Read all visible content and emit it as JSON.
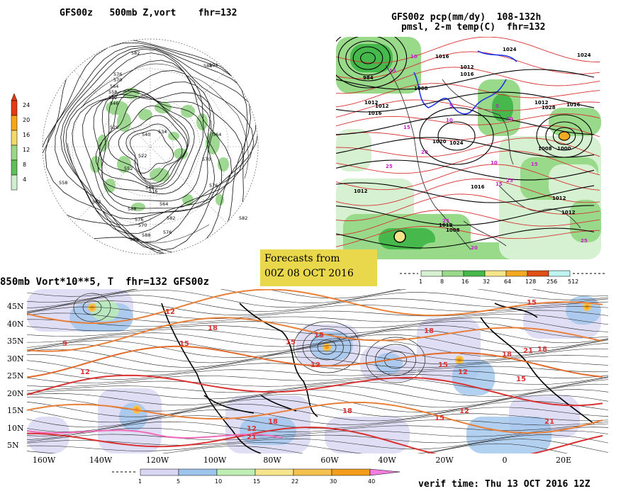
{
  "panel1": {
    "title": "GFS00z   500mb Z,vort    fhr=132",
    "colorbar_ticks": [
      "24",
      "20",
      "16",
      "12",
      "8",
      "4"
    ],
    "colorbar_colors": [
      "#e33b12",
      "#f7a51b",
      "#f3d86a",
      "#9ad78a",
      "#5fbf5a",
      "#cfeecf"
    ],
    "contour_labels": [
      "582",
      "588",
      "576",
      "570",
      "564",
      "558",
      "552",
      "546",
      "540",
      "534",
      "528",
      "522",
      "516",
      "570",
      "576",
      "564",
      "558",
      "594",
      "582",
      "588",
      "552",
      "546",
      "564",
      "582",
      "576",
      "570",
      "576",
      "582",
      "588",
      "582"
    ]
  },
  "panel2": {
    "title_line1": "GFS00z pcp(mm/dy)  108-132h",
    "title_line2": "pmsl, 2-m temp(C)  fhr=132",
    "colorbar_ticks": [
      "1",
      "8",
      "16",
      "32",
      "64",
      "128",
      "256",
      "512"
    ],
    "colorbar_colors": [
      "#d6f1d1",
      "#98da8a",
      "#47b94c",
      "#f6e48a",
      "#f3a922",
      "#e04f13",
      "#bff3f0"
    ],
    "pressure_labels": [
      "1016",
      "1024",
      "1012",
      "1008",
      "1016",
      "1012",
      "1012",
      "1020",
      "1024",
      "1028",
      "1012",
      "1016",
      "1012",
      "1008",
      "1016",
      "1024",
      "1000",
      "984",
      "1012",
      "1016",
      "1012",
      "1008",
      "1012"
    ],
    "temp_labels": [
      "15",
      "10",
      "5",
      "10",
      "5",
      "15",
      "20",
      "25",
      "10",
      "15",
      "20",
      "25",
      "25",
      "10",
      "25",
      "15"
    ]
  },
  "forecast_box": {
    "line1": "Forecasts from",
    "line2": "00Z 08 OCT 2016"
  },
  "panel3": {
    "title": "850mb Vort*10**5, T  fhr=132 GFS00z",
    "lat_labels": [
      "45N",
      "40N",
      "35N",
      "30N",
      "25N",
      "20N",
      "15N",
      "10N",
      "5N"
    ],
    "lon_labels": [
      "160W",
      "140W",
      "120W",
      "100W",
      "80W",
      "60W",
      "40W",
      "20W",
      "0",
      "20E"
    ],
    "colorbar_ticks": [
      "1",
      "5",
      "10",
      "15",
      "22",
      "30",
      "40"
    ],
    "colorbar_colors": [
      "#d8d6f2",
      "#9fc4ec",
      "#bdeeb3",
      "#f7e58e",
      "#f4c04e",
      "#f39d1c",
      "#f37ee0"
    ],
    "temp_labels": [
      "12",
      "9",
      "12",
      "15",
      "18",
      "15",
      "15",
      "12",
      "18",
      "15",
      "12",
      "18",
      "21",
      "15",
      "18",
      "21",
      "18",
      "15",
      "15",
      "12",
      "18",
      "12",
      "21"
    ]
  },
  "verif_time": "verif time: Thu 13 OCT 2016 12Z"
}
